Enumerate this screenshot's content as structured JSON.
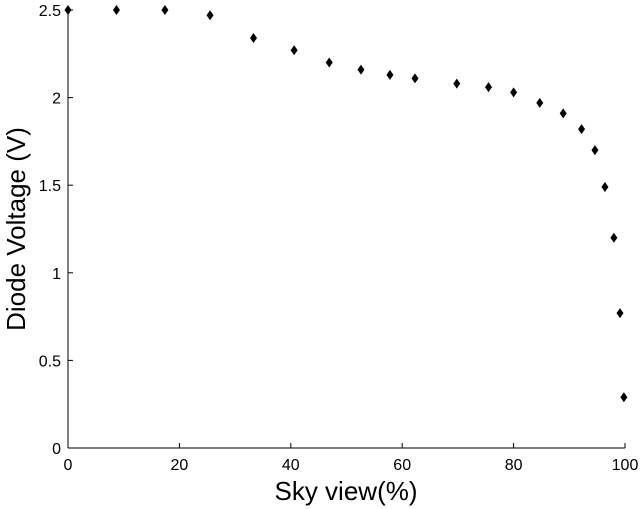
{
  "chart_data": {
    "type": "scatter",
    "title": "",
    "xlabel": "Sky view(%)",
    "ylabel": "Diode Voltage (V)",
    "xlim": [
      0,
      100
    ],
    "ylim": [
      0,
      2.5
    ],
    "x_ticks": [
      "0",
      "20",
      "40",
      "60",
      "80",
      "100"
    ],
    "y_ticks": [
      "0",
      "0.5",
      "1",
      "1.5",
      "2",
      "2.5"
    ],
    "marker": "diamond",
    "marker_color": "#000000",
    "grid": false,
    "legend": "none",
    "series": [
      {
        "points": [
          {
            "x": 0,
            "y": 2.5
          },
          {
            "x": 8.7,
            "y": 2.5
          },
          {
            "x": 17.4,
            "y": 2.5
          },
          {
            "x": 25.5,
            "y": 2.47
          },
          {
            "x": 33.3,
            "y": 2.34
          },
          {
            "x": 40.6,
            "y": 2.27
          },
          {
            "x": 46.9,
            "y": 2.2
          },
          {
            "x": 52.6,
            "y": 2.16
          },
          {
            "x": 57.8,
            "y": 2.13
          },
          {
            "x": 62.3,
            "y": 2.11
          },
          {
            "x": 69.8,
            "y": 2.08
          },
          {
            "x": 75.5,
            "y": 2.06
          },
          {
            "x": 80.0,
            "y": 2.03
          },
          {
            "x": 84.7,
            "y": 1.97
          },
          {
            "x": 88.9,
            "y": 1.91
          },
          {
            "x": 92.2,
            "y": 1.82
          },
          {
            "x": 94.6,
            "y": 1.7
          },
          {
            "x": 96.4,
            "y": 1.49
          },
          {
            "x": 98.0,
            "y": 1.2
          },
          {
            "x": 99.1,
            "y": 0.77
          },
          {
            "x": 99.8,
            "y": 0.29
          }
        ]
      }
    ]
  }
}
